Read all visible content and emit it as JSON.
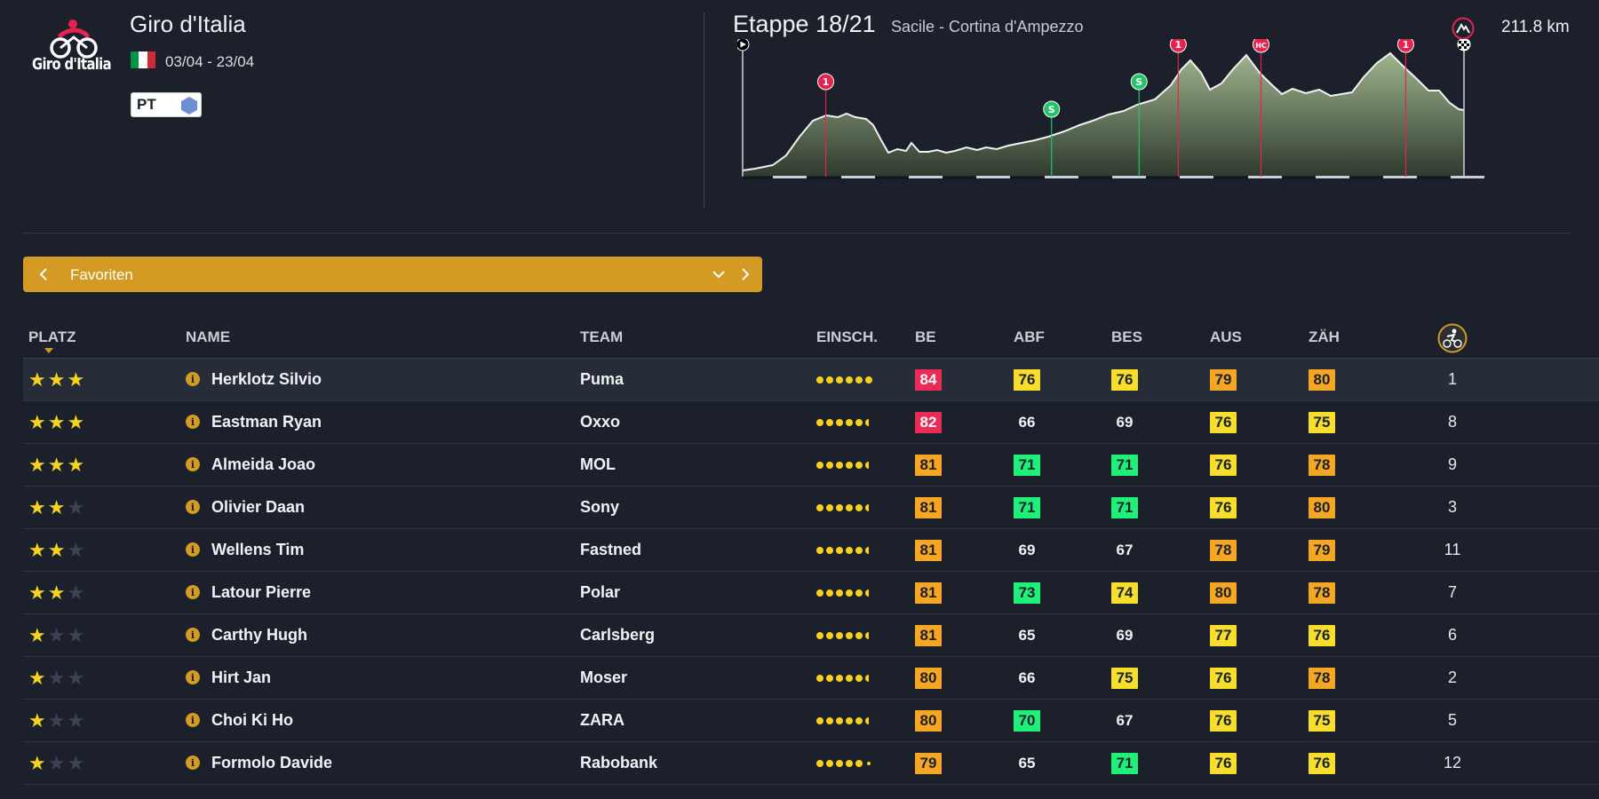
{
  "race": {
    "title": "Giro d'Italia",
    "logo_text": "Giro d'Italia",
    "dates": "03/04 - 23/04",
    "flag_colors": [
      "#009246",
      "#ffffff",
      "#ce2b37"
    ],
    "badge_label": "PT"
  },
  "stage": {
    "title": "Etappe 18/21",
    "route": "Sacile - Cortina d'Ampezzo",
    "distance": "211.8 km",
    "markers": [
      {
        "label": "1",
        "type": "climb",
        "color": "#e4234f",
        "km": 24.4
      },
      {
        "label": "S",
        "type": "sprint",
        "color": "#23c46a",
        "km": 90.7
      },
      {
        "label": "S",
        "type": "sprint",
        "color": "#23c46a",
        "km": 116.4
      },
      {
        "label": "1",
        "type": "climb",
        "color": "#e4234f",
        "km": 127.9
      },
      {
        "label": "HC",
        "type": "climb",
        "color": "#e4234f",
        "km": 152.2
      },
      {
        "label": "1",
        "type": "climb",
        "color": "#e4234f",
        "km": 194.7
      }
    ]
  },
  "selector": {
    "label": "Favoriten"
  },
  "table": {
    "headers": {
      "platz": "PLATZ",
      "name": "NAME",
      "team": "TEAM",
      "einsch": "EINSCH.",
      "be": "BE",
      "abf": "ABF",
      "bes": "BES",
      "aus": "AUS",
      "zah": "ZÄH"
    },
    "rows": [
      {
        "stars": 3,
        "name": "Herklotz Silvio",
        "team": "Puma",
        "form": 6,
        "be": {
          "v": "84",
          "c": "red"
        },
        "abf": {
          "v": "76",
          "c": "yellow"
        },
        "bes": {
          "v": "76",
          "c": "yellow"
        },
        "aus": {
          "v": "79",
          "c": "orange"
        },
        "zah": {
          "v": "80",
          "c": "orange"
        },
        "num": "1"
      },
      {
        "stars": 3,
        "name": "Eastman Ryan",
        "team": "Oxxo",
        "form": 5.5,
        "be": {
          "v": "82",
          "c": "red"
        },
        "abf": {
          "v": "66",
          "c": "plain"
        },
        "bes": {
          "v": "69",
          "c": "plain"
        },
        "aus": {
          "v": "76",
          "c": "yellow"
        },
        "zah": {
          "v": "75",
          "c": "yellow"
        },
        "num": "8"
      },
      {
        "stars": 3,
        "name": "Almeida Joao",
        "team": "MOL",
        "form": 5.5,
        "be": {
          "v": "81",
          "c": "orange"
        },
        "abf": {
          "v": "71",
          "c": "green"
        },
        "bes": {
          "v": "71",
          "c": "green"
        },
        "aus": {
          "v": "76",
          "c": "yellow"
        },
        "zah": {
          "v": "78",
          "c": "orange"
        },
        "num": "9"
      },
      {
        "stars": 2,
        "name": "Olivier Daan",
        "team": "Sony",
        "form": 5.5,
        "be": {
          "v": "81",
          "c": "orange"
        },
        "abf": {
          "v": "71",
          "c": "green"
        },
        "bes": {
          "v": "71",
          "c": "green"
        },
        "aus": {
          "v": "76",
          "c": "yellow"
        },
        "zah": {
          "v": "80",
          "c": "orange"
        },
        "num": "3"
      },
      {
        "stars": 2,
        "name": "Wellens Tim",
        "team": "Fastned",
        "form": 5.5,
        "be": {
          "v": "81",
          "c": "orange"
        },
        "abf": {
          "v": "69",
          "c": "plain"
        },
        "bes": {
          "v": "67",
          "c": "plain"
        },
        "aus": {
          "v": "78",
          "c": "orange"
        },
        "zah": {
          "v": "79",
          "c": "orange"
        },
        "num": "11"
      },
      {
        "stars": 2,
        "name": "Latour Pierre",
        "team": "Polar",
        "form": 5.5,
        "be": {
          "v": "81",
          "c": "orange"
        },
        "abf": {
          "v": "73",
          "c": "green"
        },
        "bes": {
          "v": "74",
          "c": "yellow"
        },
        "aus": {
          "v": "80",
          "c": "orange"
        },
        "zah": {
          "v": "78",
          "c": "orange"
        },
        "num": "7"
      },
      {
        "stars": 1,
        "name": "Carthy Hugh",
        "team": "Carlsberg",
        "form": 5.5,
        "be": {
          "v": "81",
          "c": "orange"
        },
        "abf": {
          "v": "65",
          "c": "plain"
        },
        "bes": {
          "v": "69",
          "c": "plain"
        },
        "aus": {
          "v": "77",
          "c": "yellow"
        },
        "zah": {
          "v": "76",
          "c": "yellow"
        },
        "num": "6"
      },
      {
        "stars": 1,
        "name": "Hirt Jan",
        "team": "Moser",
        "form": 5.5,
        "be": {
          "v": "80",
          "c": "orange"
        },
        "abf": {
          "v": "66",
          "c": "plain"
        },
        "bes": {
          "v": "75",
          "c": "yellow"
        },
        "aus": {
          "v": "76",
          "c": "yellow"
        },
        "zah": {
          "v": "78",
          "c": "orange"
        },
        "num": "2"
      },
      {
        "stars": 1,
        "name": "Choi Ki Ho",
        "team": "ZARA",
        "form": 5.5,
        "be": {
          "v": "80",
          "c": "orange"
        },
        "abf": {
          "v": "70",
          "c": "green"
        },
        "bes": {
          "v": "67",
          "c": "plain"
        },
        "aus": {
          "v": "76",
          "c": "yellow"
        },
        "zah": {
          "v": "75",
          "c": "yellow"
        },
        "num": "5"
      },
      {
        "stars": 1,
        "name": "Formolo Davide",
        "team": "Rabobank",
        "form": 5,
        "be": {
          "v": "79",
          "c": "orange"
        },
        "abf": {
          "v": "65",
          "c": "plain"
        },
        "bes": {
          "v": "71",
          "c": "green"
        },
        "aus": {
          "v": "76",
          "c": "yellow"
        },
        "zah": {
          "v": "76",
          "c": "yellow"
        },
        "num": "12"
      }
    ]
  }
}
